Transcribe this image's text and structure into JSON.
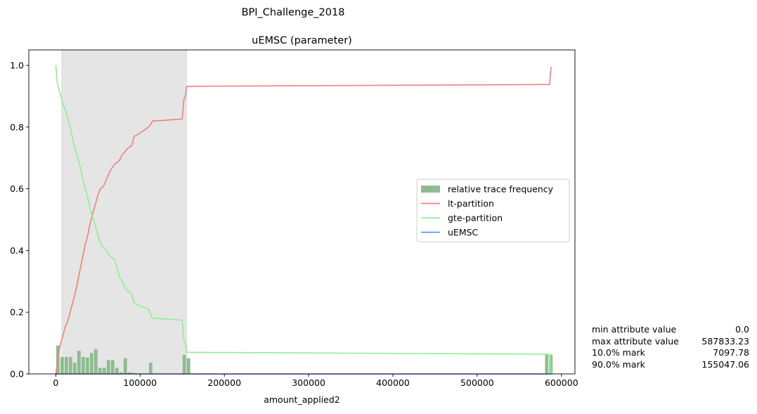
{
  "chart_data": {
    "type": "line",
    "suptitle": "BPI_Challenge_2018",
    "title": "uEMSC (parameter)",
    "xlabel": "amount_applied2",
    "ylabel": "",
    "xlim": [
      -32000,
      616000
    ],
    "ylim": [
      0,
      1.05
    ],
    "xticks": [
      0,
      100000,
      200000,
      300000,
      400000,
      500000,
      600000
    ],
    "xtick_labels": [
      "0",
      "100000",
      "200000",
      "300000",
      "400000",
      "500000",
      "600000"
    ],
    "yticks": [
      0.0,
      0.2,
      0.4,
      0.6,
      0.8,
      1.0
    ],
    "ytick_labels": [
      "0.0",
      "0.2",
      "0.4",
      "0.6",
      "0.8",
      "1.0"
    ],
    "grid": false,
    "legend_position": "center-right",
    "shaded_region": [
      7097.78,
      155047.06
    ],
    "legend": [
      {
        "label": "relative trace frequency",
        "kind": "bar",
        "color": "#8fbc8f"
      },
      {
        "label": "lt-partition",
        "kind": "line",
        "color": "#f08080"
      },
      {
        "label": "gte-partition",
        "kind": "line",
        "color": "#90ee90"
      },
      {
        "label": "uEMSC",
        "kind": "line",
        "color": "#6495ed"
      }
    ],
    "histogram": {
      "color": "#8fbc8f",
      "bin_width": 5000,
      "bins": [
        {
          "x": 2500,
          "y": 0.092
        },
        {
          "x": 7500,
          "y": 0.055
        },
        {
          "x": 12500,
          "y": 0.055
        },
        {
          "x": 17500,
          "y": 0.055
        },
        {
          "x": 22500,
          "y": 0.037
        },
        {
          "x": 27500,
          "y": 0.075
        },
        {
          "x": 32500,
          "y": 0.055
        },
        {
          "x": 37500,
          "y": 0.053
        },
        {
          "x": 42500,
          "y": 0.068
        },
        {
          "x": 47500,
          "y": 0.08
        },
        {
          "x": 52500,
          "y": 0.02
        },
        {
          "x": 57500,
          "y": 0.02
        },
        {
          "x": 62500,
          "y": 0.045
        },
        {
          "x": 67500,
          "y": 0.045
        },
        {
          "x": 72500,
          "y": 0.02
        },
        {
          "x": 77500,
          "y": 0.005
        },
        {
          "x": 82500,
          "y": 0.051
        },
        {
          "x": 87500,
          "y": 0.005
        },
        {
          "x": 92500,
          "y": 0.003
        },
        {
          "x": 112500,
          "y": 0.037
        },
        {
          "x": 152500,
          "y": 0.062
        },
        {
          "x": 157500,
          "y": 0.051
        },
        {
          "x": 582500,
          "y": 0.062
        },
        {
          "x": 587500,
          "y": 0.062
        }
      ]
    },
    "series": [
      {
        "name": "lt-partition",
        "color": "#f08080",
        "x": [
          0,
          3000,
          5000,
          7000,
          9000,
          11000,
          14000,
          17000,
          20000,
          23000,
          26000,
          29000,
          32000,
          35000,
          38000,
          40000,
          42000,
          45000,
          48000,
          50000,
          53000,
          57000,
          60000,
          65000,
          70000,
          75000,
          79000,
          82000,
          85000,
          90000,
          93000,
          100000,
          105000,
          110000,
          113000,
          115000,
          120000,
          130000,
          140000,
          150000,
          152000,
          154000,
          155000,
          156000,
          586000,
          586500,
          587833
        ],
        "y": [
          0.0,
          0.05,
          0.09,
          0.11,
          0.13,
          0.15,
          0.17,
          0.2,
          0.23,
          0.26,
          0.3,
          0.34,
          0.38,
          0.42,
          0.45,
          0.48,
          0.5,
          0.53,
          0.56,
          0.58,
          0.6,
          0.61,
          0.63,
          0.66,
          0.68,
          0.69,
          0.71,
          0.72,
          0.73,
          0.74,
          0.77,
          0.78,
          0.79,
          0.8,
          0.81,
          0.82,
          0.82,
          0.822,
          0.824,
          0.826,
          0.89,
          0.9,
          0.93,
          0.932,
          0.938,
          0.96,
          0.995
        ]
      },
      {
        "name": "gte-partition",
        "color": "#90ee90",
        "x": [
          0,
          1500,
          3000,
          5000,
          7000,
          9000,
          12000,
          15000,
          18000,
          21000,
          24000,
          27000,
          30000,
          33000,
          36000,
          39000,
          42000,
          45000,
          48000,
          51000,
          54000,
          57000,
          60000,
          65000,
          70000,
          73000,
          76000,
          79000,
          82000,
          85000,
          90000,
          93000,
          100000,
          110000,
          113000,
          115000,
          120000,
          130000,
          140000,
          150000,
          152000,
          154000,
          155000,
          156000,
          586000,
          586500,
          587833
        ],
        "y": [
          1.0,
          0.95,
          0.93,
          0.91,
          0.89,
          0.87,
          0.85,
          0.82,
          0.79,
          0.75,
          0.72,
          0.69,
          0.66,
          0.62,
          0.59,
          0.56,
          0.52,
          0.5,
          0.47,
          0.44,
          0.42,
          0.41,
          0.4,
          0.38,
          0.37,
          0.34,
          0.31,
          0.3,
          0.28,
          0.27,
          0.26,
          0.23,
          0.22,
          0.21,
          0.19,
          0.18,
          0.18,
          0.178,
          0.176,
          0.174,
          0.11,
          0.1,
          0.07,
          0.07,
          0.064,
          0.06,
          0.0
        ]
      },
      {
        "name": "uEMSC",
        "color": "#6495ed",
        "x": [
          0,
          587833
        ],
        "y": [
          0.0,
          0.0
        ]
      }
    ]
  },
  "stats": [
    {
      "label": "min attribute value",
      "value": "0.0"
    },
    {
      "label": "max attribute value",
      "value": "587833.23"
    },
    {
      "label": "10.0% mark",
      "value": "7097.78"
    },
    {
      "label": "90.0% mark",
      "value": "155047.06"
    }
  ]
}
